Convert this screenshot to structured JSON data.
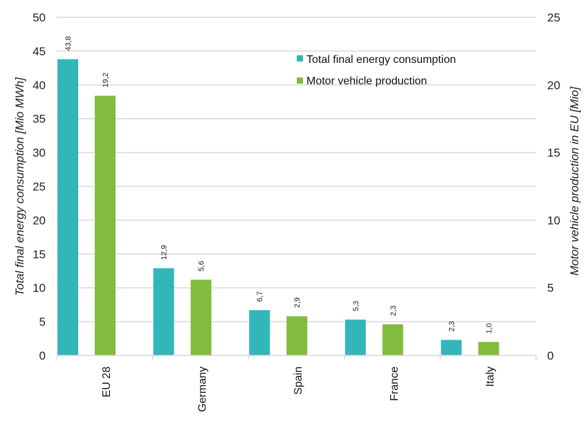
{
  "chart_data": {
    "type": "bar",
    "title": "",
    "categories": [
      "EU 28",
      "Germany",
      "Spain",
      "France",
      "Italy"
    ],
    "series": [
      {
        "name": "Total final energy consumption",
        "axis": "left",
        "color": "#33B6BA",
        "values": [
          43.8,
          12.9,
          6.7,
          5.3,
          2.3
        ],
        "labels": [
          "43,8",
          "12,9",
          "6,7",
          "5,3",
          "2,3"
        ]
      },
      {
        "name": "Motor vehicle production",
        "axis": "right",
        "color": "#82BC3C",
        "values": [
          19.2,
          5.6,
          2.9,
          2.3,
          1.0
        ],
        "labels": [
          "19,2",
          "5,6",
          "2,9",
          "2,3",
          "1,0"
        ]
      }
    ],
    "ylabel": "Total final energy consumption [Mio MWh]",
    "ylim": [
      0,
      50
    ],
    "yticks": [
      0,
      5,
      10,
      15,
      20,
      25,
      30,
      35,
      40,
      45,
      50
    ],
    "y2label": "Motor vehicle production in EU [Mio]",
    "y2lim": [
      0,
      25
    ],
    "y2ticks": [
      0,
      5,
      10,
      15,
      20,
      25
    ],
    "xlabel": "",
    "grid": true,
    "legend": "top-center"
  }
}
